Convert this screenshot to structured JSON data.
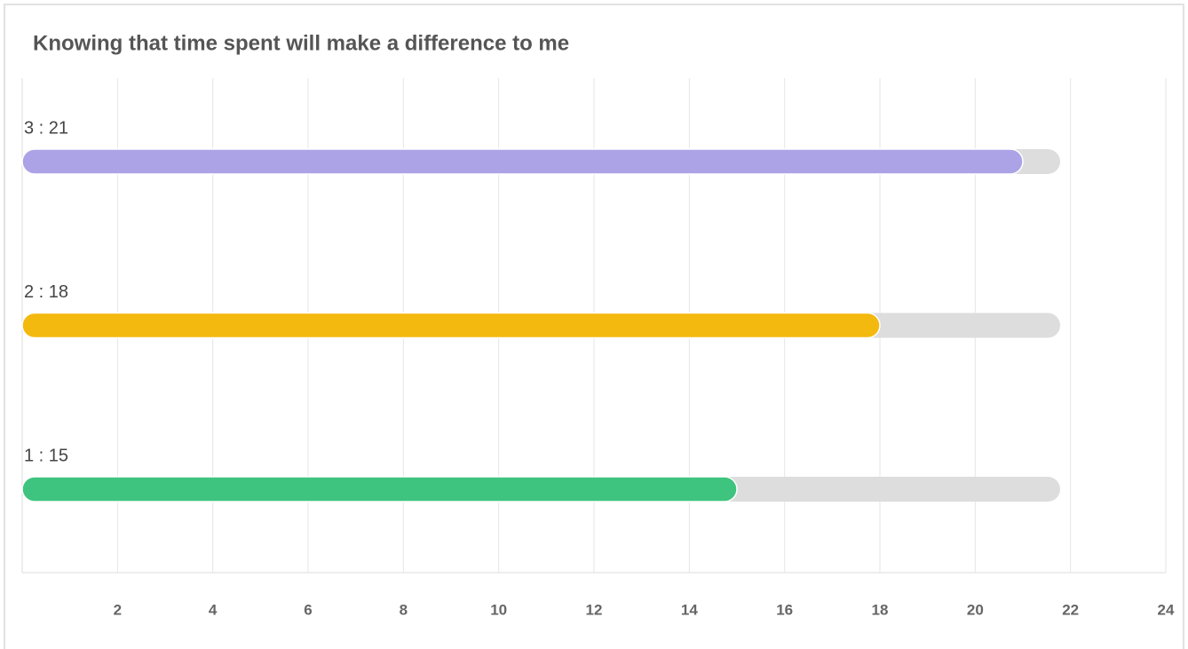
{
  "chart_data": {
    "type": "hbar",
    "title": "Knowing that time spent will make a difference to me",
    "values": [
      21,
      18,
      15
    ],
    "value_labels": [
      "3 : 21",
      "2 : 18",
      "1 : 15"
    ],
    "colors": [
      "#aba3e6",
      "#f4b90f",
      "#3ec47e"
    ],
    "xlim": [
      0,
      24
    ],
    "xticks": [
      2,
      4,
      6,
      8,
      10,
      12,
      14,
      16,
      18,
      20,
      22,
      24
    ],
    "grid": true
  }
}
